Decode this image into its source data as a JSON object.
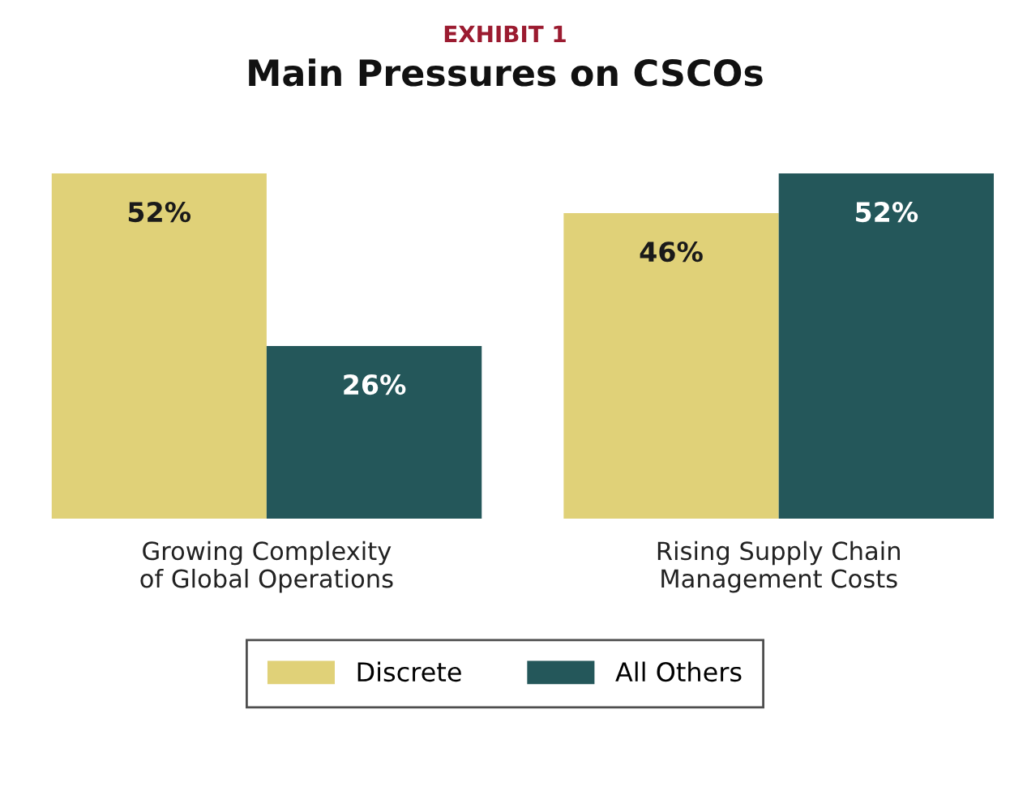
{
  "chart_data": {
    "type": "bar",
    "title": "Main Pressures on CSCOs",
    "annotations": [
      "EXHIBIT 1"
    ],
    "categories": [
      "Growing Complexity\nof Global Operations",
      "Rising Supply Chain\nManagement Costs"
    ],
    "series": [
      {
        "name": "Discrete",
        "color": "#e0d178",
        "values": [
          52,
          46
        ],
        "value_labels": [
          "52%",
          "46%"
        ]
      },
      {
        "name": "All Others",
        "color": "#24575a",
        "values": [
          26,
          52
        ],
        "value_labels": [
          "26%",
          "52%"
        ]
      }
    ],
    "ylim": [
      0,
      52
    ],
    "legend": "bottom",
    "grid": false
  }
}
